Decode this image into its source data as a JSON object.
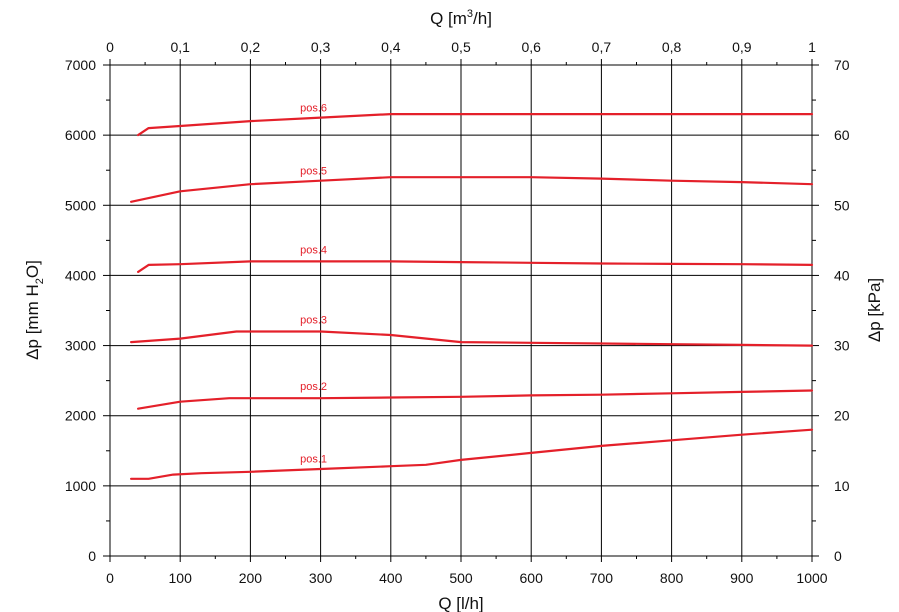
{
  "chart_data": {
    "type": "line",
    "x_axis_bottom": {
      "label": "Q [l/h]",
      "range": [
        0,
        1000
      ],
      "ticks": [
        "0",
        "100",
        "200",
        "300",
        "400",
        "500",
        "600",
        "700",
        "800",
        "900",
        "1000"
      ]
    },
    "x_axis_top": {
      "label_prefix": "Q [m",
      "label_sup": "3",
      "label_suffix": "/h]",
      "range": [
        0,
        1
      ],
      "ticks": [
        "0",
        "0,1",
        "0,2",
        "0,3",
        "0,4",
        "0,5",
        "0,6",
        "0,7",
        "0,8",
        "0,9",
        "1"
      ]
    },
    "y_axis_left": {
      "label_prefix": "Δp [mm H",
      "label_sub": "2",
      "label_suffix": "O]",
      "range": [
        0,
        7000
      ],
      "ticks": [
        "0",
        "1000",
        "2000",
        "3000",
        "4000",
        "5000",
        "6000",
        "7000"
      ]
    },
    "y_axis_right": {
      "label": "Δp [kPa]",
      "range": [
        0,
        70
      ],
      "ticks": [
        "0",
        "10",
        "20",
        "30",
        "40",
        "50",
        "60",
        "70"
      ]
    },
    "grid": true,
    "line_color": "#e4202a",
    "series": [
      {
        "name": "pos.1",
        "x": [
          30,
          55,
          90,
          130,
          200,
          300,
          400,
          450,
          500,
          600,
          700,
          800,
          900,
          1000
        ],
        "y": [
          1100,
          1100,
          1160,
          1180,
          1200,
          1240,
          1280,
          1300,
          1370,
          1470,
          1570,
          1650,
          1730,
          1800
        ]
      },
      {
        "name": "pos.2",
        "x": [
          40,
          100,
          170,
          300,
          400,
          500,
          600,
          700,
          800,
          900,
          1000
        ],
        "y": [
          2100,
          2200,
          2250,
          2250,
          2260,
          2270,
          2290,
          2300,
          2320,
          2340,
          2360
        ]
      },
      {
        "name": "pos.3",
        "x": [
          30,
          100,
          180,
          300,
          400,
          500,
          600,
          700,
          800,
          900,
          1000
        ],
        "y": [
          3050,
          3100,
          3200,
          3200,
          3150,
          3050,
          3040,
          3030,
          3020,
          3010,
          3000
        ]
      },
      {
        "name": "pos.4",
        "x": [
          40,
          55,
          100,
          200,
          300,
          400,
          500,
          600,
          700,
          800,
          900,
          1000
        ],
        "y": [
          4050,
          4150,
          4160,
          4200,
          4200,
          4200,
          4190,
          4180,
          4170,
          4165,
          4160,
          4150
        ]
      },
      {
        "name": "pos.5",
        "x": [
          30,
          100,
          200,
          300,
          400,
          500,
          600,
          700,
          800,
          900,
          1000
        ],
        "y": [
          5050,
          5200,
          5300,
          5350,
          5400,
          5400,
          5400,
          5380,
          5350,
          5330,
          5300
        ]
      },
      {
        "name": "pos.6",
        "x": [
          40,
          55,
          100,
          200,
          300,
          400,
          500,
          600,
          700,
          800,
          900,
          1000
        ],
        "y": [
          6000,
          6100,
          6130,
          6200,
          6250,
          6300,
          6300,
          6300,
          6300,
          6300,
          6300,
          6300
        ]
      }
    ]
  }
}
